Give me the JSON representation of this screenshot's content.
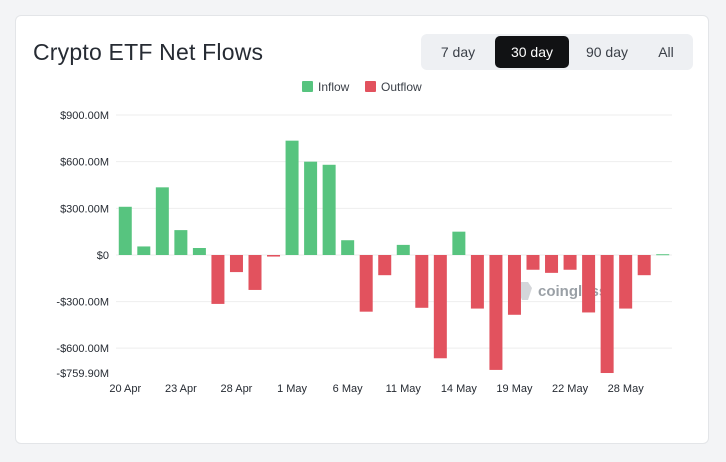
{
  "header": {
    "title": "Crypto ETF Net Flows"
  },
  "range": {
    "options": [
      "7 day",
      "30 day",
      "90 day",
      "All"
    ],
    "selected": "30 day"
  },
  "watermark": {
    "text": "coinglass"
  },
  "colors": {
    "inflow": "#57c47f",
    "outflow": "#e2525e",
    "grid": "#eeeeee",
    "text": "#262b33"
  },
  "chart_data": {
    "type": "bar",
    "legend": {
      "position": "top-center",
      "entries": [
        "Inflow",
        "Outflow"
      ]
    },
    "grid": true,
    "ylim": [
      -759.9,
      900
    ],
    "yticks": [
      {
        "value": 900,
        "label": "$900.00M"
      },
      {
        "value": 600,
        "label": "$600.00M"
      },
      {
        "value": 300,
        "label": "$300.00M"
      },
      {
        "value": 0,
        "label": "$0"
      },
      {
        "value": -300,
        "label": "-$300.00M"
      },
      {
        "value": -600,
        "label": "-$600.00M"
      },
      {
        "value": -759.9,
        "label": "-$759.90M"
      }
    ],
    "xticks": [
      {
        "index": 0,
        "label": "20 Apr"
      },
      {
        "index": 3,
        "label": "23 Apr"
      },
      {
        "index": 6,
        "label": "28 Apr"
      },
      {
        "index": 9,
        "label": "1 May"
      },
      {
        "index": 12,
        "label": "6 May"
      },
      {
        "index": 15,
        "label": "11 May"
      },
      {
        "index": 18,
        "label": "14 May"
      },
      {
        "index": 21,
        "label": "19 May"
      },
      {
        "index": 24,
        "label": "22 May"
      },
      {
        "index": 27,
        "label": "28 May"
      }
    ],
    "values": [
      310,
      55,
      435,
      160,
      45,
      -315,
      -110,
      -225,
      -10,
      735,
      600,
      580,
      95,
      -365,
      -130,
      65,
      -340,
      -665,
      150,
      -345,
      -740,
      -385,
      -95,
      -115,
      -95,
      -370,
      -760,
      -345,
      -130,
      5
    ]
  }
}
